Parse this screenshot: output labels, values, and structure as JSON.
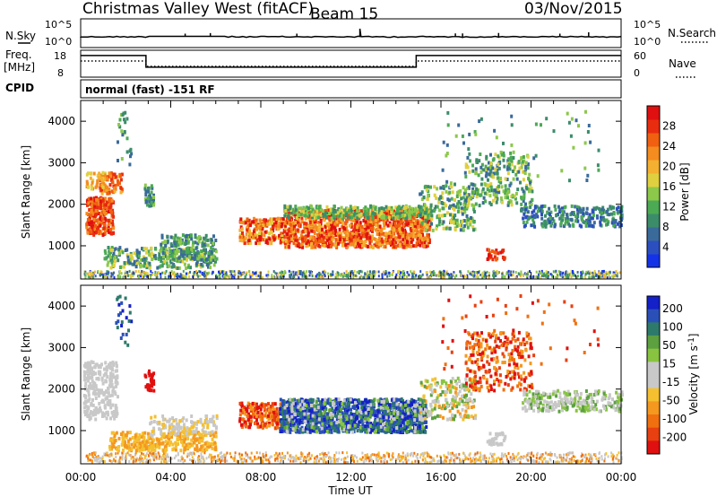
{
  "header": {
    "site": "Christmas Valley West (fitACF)",
    "beam": "Beam 15",
    "date": "03/Nov/2015"
  },
  "param_panel": {
    "nsky_label": "N.Sky",
    "nsky_ticks": [
      "10^5",
      "10^0"
    ],
    "nsearch_label": "N.Search",
    "freq_label_1": "Freq.",
    "freq_label_2": "[MHz]",
    "freq_ticks": [
      "18",
      "8"
    ],
    "nave_label": "Nave",
    "nave_ticks": [
      "60",
      "0"
    ],
    "cpid_label": "CPID",
    "cpid_text": "normal (fast) -151 RF"
  },
  "chart_data": [
    {
      "type": "heatmap",
      "name": "power",
      "ylabel": "Slant Range [km]",
      "yticks": [
        1000,
        2000,
        3000,
        4000
      ],
      "ylim": [
        200,
        4500
      ],
      "xlim": [
        0,
        24
      ],
      "xticks": [
        "00:00",
        "04:00",
        "08:00",
        "12:00",
        "16:00",
        "20:00",
        "00:00"
      ],
      "colorbar": {
        "label": "Power [dB]",
        "ticks": [
          "4",
          "8",
          "12",
          "16",
          "20",
          "24",
          "28"
        ],
        "colors": [
          "#1433e8",
          "#2c4fc0",
          "#3a6a9a",
          "#3c8c6a",
          "#4caa54",
          "#8cc84a",
          "#e0d040",
          "#f4b030",
          "#f48c20",
          "#f06010",
          "#e82c10",
          "#e01010"
        ]
      }
    },
    {
      "type": "heatmap",
      "name": "velocity",
      "ylabel": "Slant Range [km]",
      "yticks": [
        1000,
        2000,
        3000,
        4000
      ],
      "ylim": [
        200,
        4500
      ],
      "xlim": [
        0,
        24
      ],
      "xlabel": "Time UT",
      "xticks": [
        "00:00",
        "04:00",
        "08:00",
        "12:00",
        "16:00",
        "20:00",
        "00:00"
      ],
      "colorbar": {
        "label": "Velocity [m s^-1]",
        "ticks": [
          "200",
          "100",
          "50",
          "15",
          "-15",
          "-50",
          "-100",
          "-200"
        ],
        "colors": [
          "#1420c8",
          "#2a50b8",
          "#2e7a6a",
          "#5ca040",
          "#88c440",
          "#c8c8c8",
          "#c8c8c8",
          "#f4c030",
          "#f49820",
          "#f07010",
          "#e84010",
          "#e01010"
        ]
      }
    }
  ]
}
